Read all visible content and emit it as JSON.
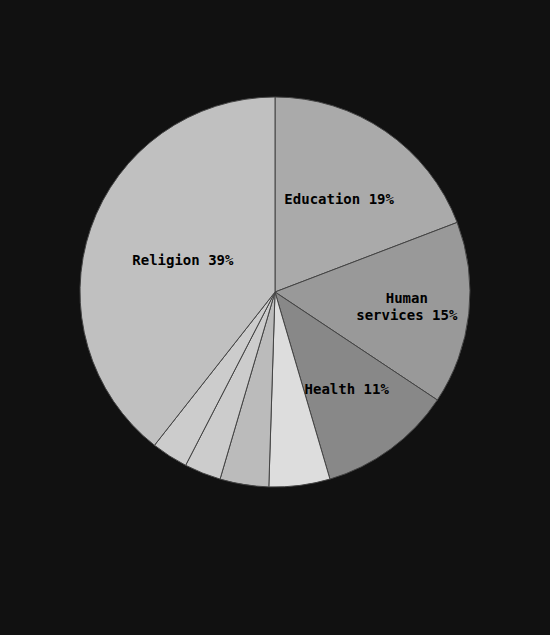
{
  "chart_data": {
    "type": "pie",
    "categories": [
      "Education 19%",
      "Human\nservices 15%",
      "Health 11%",
      null,
      null,
      null,
      null,
      "Religion 39%"
    ],
    "values": [
      19,
      15,
      11,
      5,
      4,
      3,
      3,
      39
    ],
    "colors": [
      "#aaaaaa",
      "#999999",
      "#888888",
      "#dddddd",
      "#bbbbbb",
      "#cccccc",
      "#cccccc",
      "#c0c0c0"
    ]
  }
}
